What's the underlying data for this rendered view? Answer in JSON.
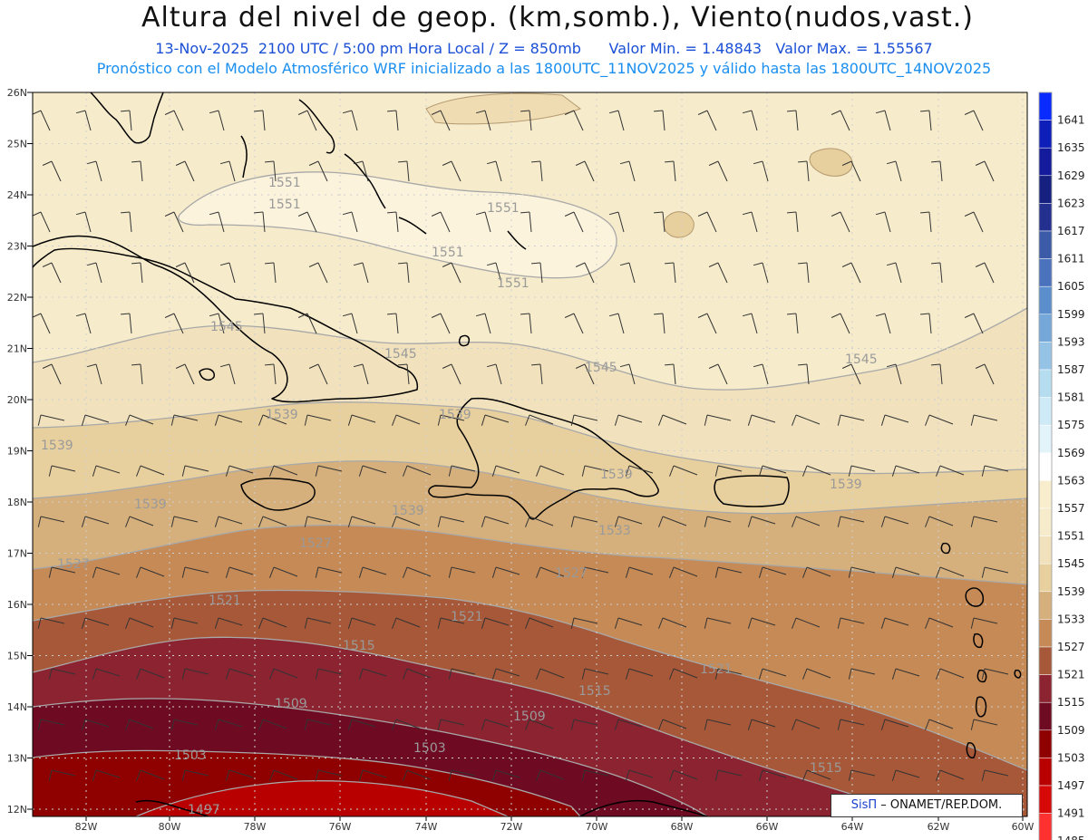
{
  "title": "Altura del nivel de geop. (km,somb.), Viento(nudos,vast.)",
  "subtitle_line1": {
    "datetime": "13-Nov-2025  2100 UTC / 5:00 pm Hora Local / Z = 850mb",
    "min": "Valor Min. = 1.48843",
    "max": "Valor Max. = 1.55567"
  },
  "subtitle_line2": "Pronóstico con el Modelo Atmosférico WRF inicializado a las 1800UTC_11NOV2025 y válido hasta las  1800UTC_14NOV2025",
  "lat_labels": [
    "26N",
    "25N",
    "24N",
    "23N",
    "22N",
    "21N",
    "20N",
    "19N",
    "18N",
    "17N",
    "16N",
    "15N",
    "14N",
    "13N",
    "12N"
  ],
  "lon_labels": [
    "82W",
    "80W",
    "78W",
    "76W",
    "74W",
    "72W",
    "70W",
    "68W",
    "66W",
    "64W",
    "62W",
    "60W"
  ],
  "colorbar_labels": [
    "1641",
    "1635",
    "1629",
    "1623",
    "1617",
    "1611",
    "1605",
    "1599",
    "1593",
    "1587",
    "1581",
    "1575",
    "1569",
    "1563",
    "1557",
    "1551",
    "1545",
    "1539",
    "1533",
    "1527",
    "1521",
    "1515",
    "1509",
    "1503",
    "1497",
    "1491",
    "1485"
  ],
  "colorbar_colors": [
    "#0a2bff",
    "#0d1fb8",
    "#141a9c",
    "#152080",
    "#24308f",
    "#3b5aa8",
    "#4a72bd",
    "#5b8ecc",
    "#75a8d8",
    "#95c3e6",
    "#b6dcf0",
    "#cfeaf7",
    "#e2f4fa",
    "#ffffff",
    "#f8eecd",
    "#f6ebcb",
    "#f1e2bd",
    "#e7cf9e",
    "#d5b07c",
    "#c58a56",
    "#a75838",
    "#8b2331",
    "#6e0b22",
    "#8f0000",
    "#b80000",
    "#d60808",
    "#ff3030"
  ],
  "contour_labels": {
    "1551": [
      "1551",
      "1551",
      "1551",
      "1551",
      "1551"
    ],
    "1545": [
      "1545",
      "1545",
      "1545",
      "1545"
    ],
    "1539": [
      "1539",
      "1539",
      "1539",
      "1539",
      "1539",
      "1539",
      "1539"
    ],
    "1533": [
      "1533",
      "1533"
    ],
    "1527": [
      "1527",
      "1527",
      "1527",
      "1527"
    ],
    "1521": [
      "1521",
      "1521",
      "1521"
    ],
    "1515": [
      "1515",
      "1515",
      "1515"
    ],
    "1509": [
      "1509",
      "1509"
    ],
    "1503": [
      "1503",
      "1503"
    ],
    "1497": [
      "1497"
    ]
  },
  "credit": {
    "brand": "SisΠ",
    "org": " – ONAMET/REP.DOM."
  }
}
